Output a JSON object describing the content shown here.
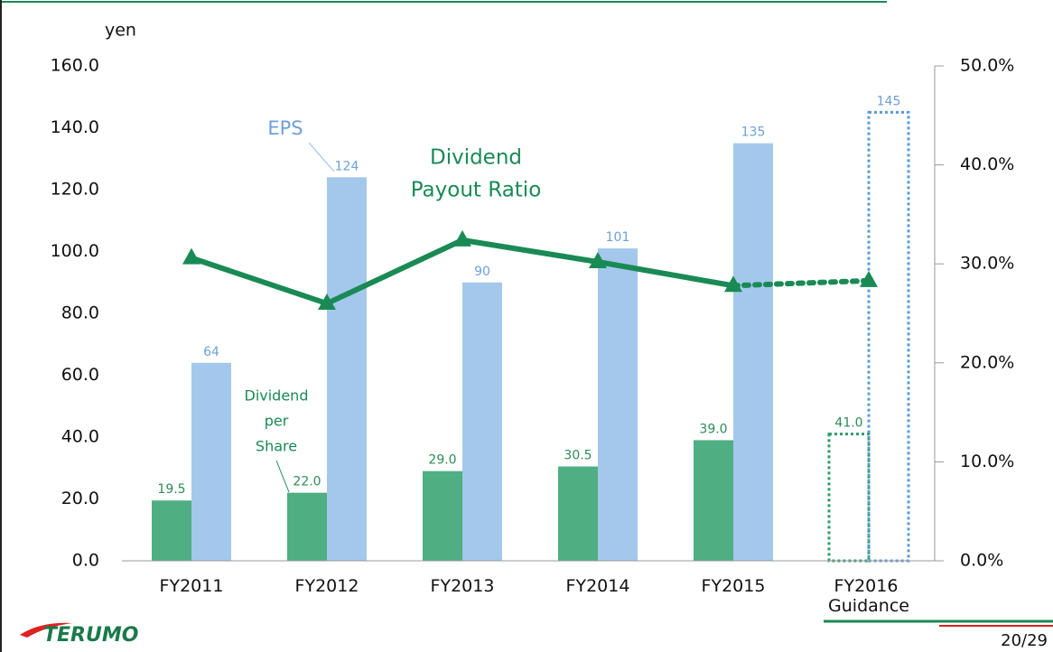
{
  "chart_data": {
    "type": "bar_line",
    "y_label": "yen",
    "categories": [
      "FY2011",
      "FY2012",
      "FY2013",
      "FY2014",
      "FY2015",
      "FY2016 Guidance"
    ],
    "forecast": [
      false,
      false,
      false,
      false,
      false,
      true
    ],
    "series": [
      {
        "name": "Dividend per Share",
        "color": "#4fae82",
        "label_color": "#2e8b57",
        "values": [
          19.5,
          22,
          29,
          30.5,
          39,
          41
        ],
        "value_labels": [
          "19.5",
          "22.0",
          "29.0",
          "30.5",
          "39.0",
          "41.0"
        ]
      },
      {
        "name": "EPS",
        "color": "#a3c8ec",
        "label_color": "#6ea0d6",
        "values": [
          64,
          124,
          90,
          101,
          135,
          145
        ]
      },
      {
        "name": "Dividend Payout Ratio",
        "color": "#1a8a55",
        "axis": "y2",
        "values": [
          30.6,
          26.0,
          32.4,
          30.2,
          27.8,
          28.3
        ]
      }
    ],
    "annotations": {
      "eps": "EPS",
      "payout": [
        "Dividend",
        "Payout Ratio"
      ],
      "dps": [
        "Dividend",
        "per",
        "Share"
      ]
    },
    "ylim": [
      0,
      160
    ],
    "yticks": [
      {
        "value": 0,
        "label": "0.0"
      },
      {
        "value": 20,
        "label": "20.0"
      },
      {
        "value": 40,
        "label": "40.0"
      },
      {
        "value": 60,
        "label": "60.0"
      },
      {
        "value": 80,
        "label": "80.0"
      },
      {
        "value": 100,
        "label": "100.0"
      },
      {
        "value": 120,
        "label": "120.0"
      },
      {
        "value": 140,
        "label": "140.0"
      },
      {
        "value": 160,
        "label": "160.0"
      }
    ],
    "y2lim": [
      0,
      50
    ],
    "y2ticks": [
      {
        "value": 0,
        "label": "0.0%"
      },
      {
        "value": 10,
        "label": "10.0%"
      },
      {
        "value": 20,
        "label": "20.0%"
      },
      {
        "value": 30,
        "label": "30.0%"
      },
      {
        "value": 40,
        "label": "40.0%"
      },
      {
        "value": 50,
        "label": "50.0%"
      }
    ]
  },
  "footer": {
    "logo": "TERUMO",
    "page": "20/29"
  }
}
